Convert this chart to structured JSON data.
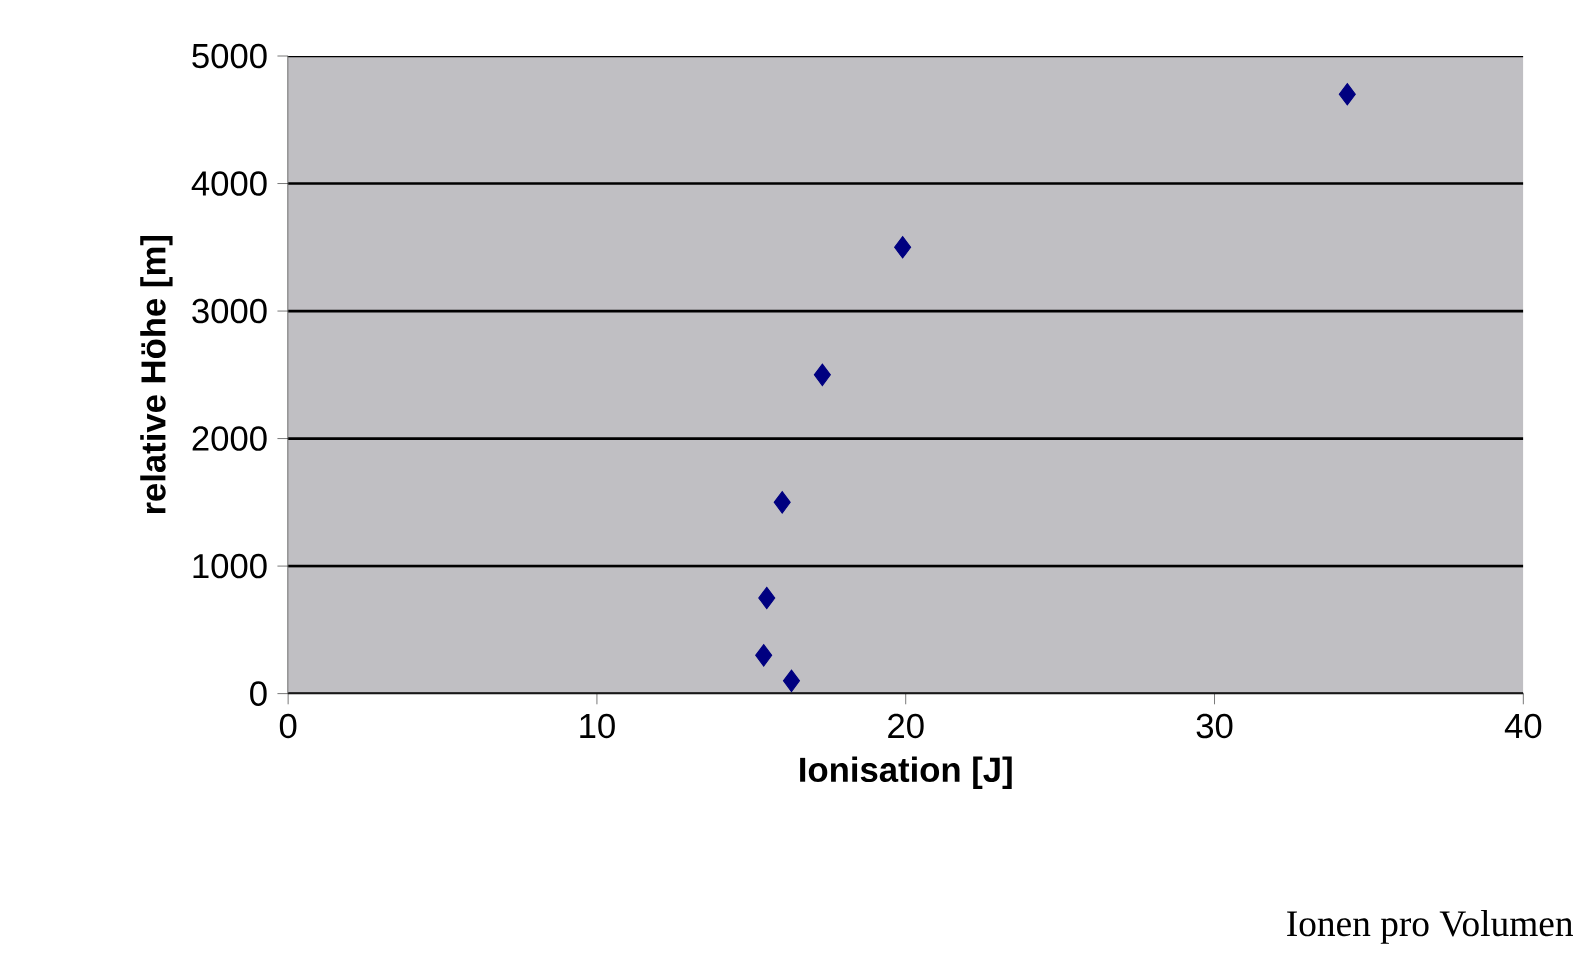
{
  "chart_data": {
    "type": "scatter",
    "xlabel": "Ionisation [J]",
    "ylabel": "relative Höhe [m]",
    "x": [
      34.3,
      19.9,
      17.3,
      16.0,
      15.5,
      15.4,
      16.3
    ],
    "series": [
      {
        "color": "#000080",
        "values": [
          4700,
          3500,
          2500,
          1500,
          750,
          300,
          100
        ]
      }
    ],
    "xlim": [
      0,
      40
    ],
    "xticks": [
      0,
      10,
      20,
      30,
      40
    ],
    "ylim": [
      0,
      5000
    ],
    "yticks": [
      0,
      1000,
      2000,
      3000,
      4000,
      5000
    ],
    "grid": "y",
    "marker": "diamond",
    "annotations": [
      "Ionen pro Volumen"
    ]
  }
}
